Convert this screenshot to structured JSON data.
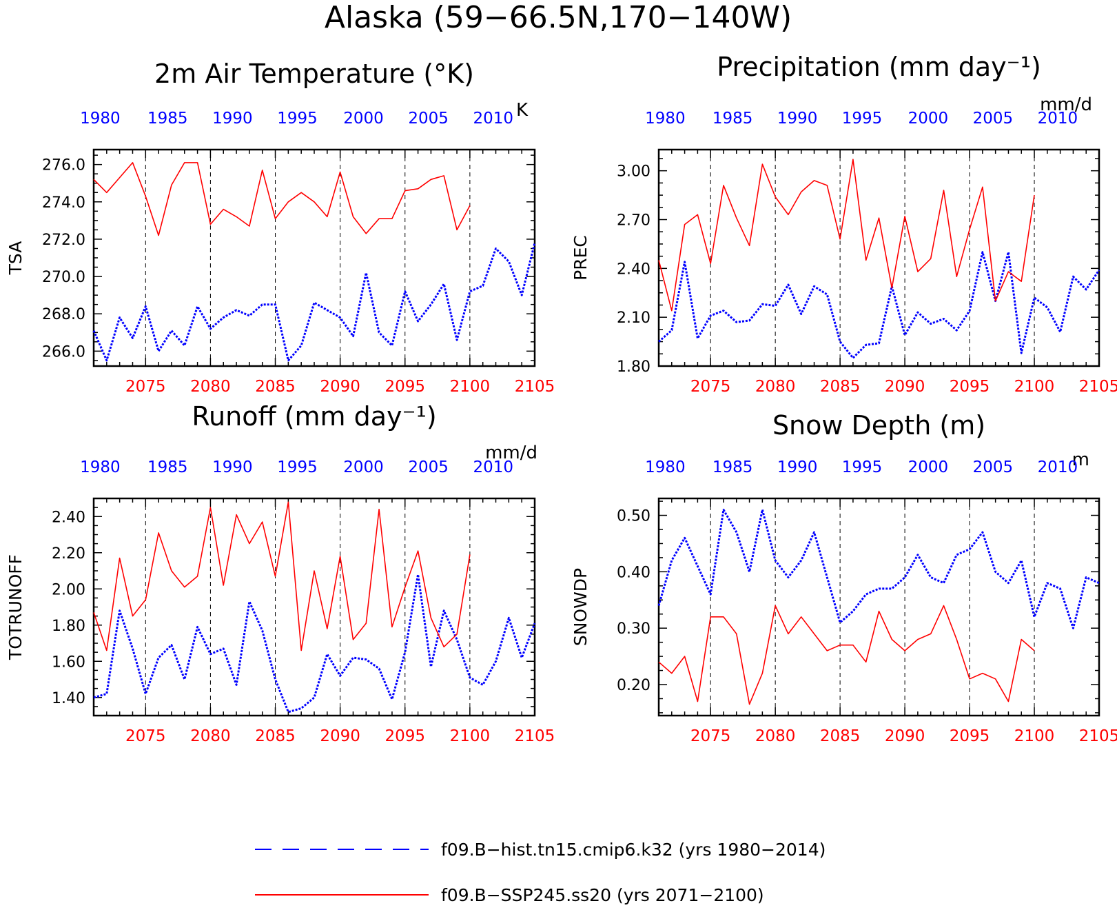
{
  "page_title": "Alaska (59−66.5N,170−140W)",
  "colors": {
    "hist": "#0000ff",
    "ssp": "#ff0000",
    "axis": "#000000",
    "vline": "#000000"
  },
  "legend": {
    "hist_label": "f09.B−hist.tn15.cmip6.k32 (yrs 1980−2014)",
    "ssp_label": "f09.B−SSP245.ss20 (yrs 2071−2100)"
  },
  "chart_data": [
    {
      "type": "line",
      "title": "2m Air Temperature (°K)",
      "ylabel": "TSA",
      "units": "K",
      "ylim": [
        265.2,
        276.8
      ],
      "yticks": [
        266.0,
        268.0,
        270.0,
        272.0,
        274.0,
        276.0
      ],
      "ytick_labels": [
        "266.0",
        "268.0",
        "270.0",
        "272.0",
        "274.0",
        "276.0"
      ],
      "x_bottom_ticks": [
        "2075",
        "2080",
        "2085",
        "2090",
        "2095",
        "2100",
        "2105"
      ],
      "x_top_ticks": [
        "1980",
        "1985",
        "1990",
        "1995",
        "2000",
        "2005",
        "2010"
      ],
      "grid": "dashed vertical lines every 5 years",
      "series": [
        {
          "name": "f09.B−hist.tn15.cmip6.k32",
          "years": "1980-2014",
          "values": [
            267.1,
            265.5,
            267.8,
            266.7,
            268.4,
            266.0,
            267.1,
            266.3,
            268.4,
            267.2,
            267.8,
            268.2,
            267.9,
            268.5,
            268.5,
            265.5,
            266.3,
            268.6,
            268.2,
            267.8,
            266.8,
            270.2,
            267.0,
            266.3,
            269.2,
            267.6,
            268.5,
            269.6,
            266.6,
            269.2,
            269.5,
            271.5,
            270.8,
            269.0,
            271.8
          ]
        },
        {
          "name": "f09.B−SSP245.ss20",
          "years": "2071-2100",
          "values": [
            275.2,
            274.5,
            275.3,
            276.1,
            274.3,
            272.2,
            274.9,
            276.1,
            276.1,
            272.8,
            273.6,
            273.2,
            272.7,
            275.7,
            273.1,
            274.0,
            274.5,
            274.0,
            273.2,
            275.6,
            273.2,
            272.3,
            273.1,
            273.1,
            274.6,
            274.7,
            275.2,
            275.4,
            272.5,
            273.8
          ]
        }
      ]
    },
    {
      "type": "line",
      "title": "Precipitation (mm day⁻¹)",
      "ylabel": "PREC",
      "units": "mm/d",
      "ylim": [
        1.8,
        3.13
      ],
      "yticks": [
        1.8,
        2.1,
        2.4,
        2.7,
        3.0
      ],
      "ytick_labels": [
        "1.80",
        "2.10",
        "2.40",
        "2.70",
        "3.00"
      ],
      "x_bottom_ticks": [
        "2075",
        "2080",
        "2085",
        "2090",
        "2095",
        "2100",
        "2105"
      ],
      "x_top_ticks": [
        "1980",
        "1985",
        "1990",
        "1995",
        "2000",
        "2005",
        "2010"
      ],
      "grid": "dashed vertical lines every 5 years",
      "series": [
        {
          "name": "f09.B−hist.tn15.cmip6.k32",
          "years": "1980-2014",
          "values": [
            1.95,
            2.02,
            2.44,
            1.97,
            2.11,
            2.14,
            2.07,
            2.08,
            2.18,
            2.17,
            2.3,
            2.12,
            2.29,
            2.24,
            1.95,
            1.85,
            1.93,
            1.94,
            2.29,
            1.99,
            2.13,
            2.06,
            2.09,
            2.02,
            2.14,
            2.5,
            2.2,
            2.5,
            1.88,
            2.22,
            2.16,
            2.01,
            2.35,
            2.27,
            2.39
          ]
        },
        {
          "name": "f09.B−SSP245.ss20",
          "years": "2071-2100",
          "values": [
            2.45,
            2.14,
            2.67,
            2.73,
            2.43,
            2.91,
            2.71,
            2.54,
            3.04,
            2.84,
            2.73,
            2.87,
            2.94,
            2.91,
            2.58,
            3.07,
            2.45,
            2.71,
            2.28,
            2.72,
            2.38,
            2.46,
            2.88,
            2.35,
            2.64,
            2.9,
            2.2,
            2.38,
            2.32,
            2.85
          ]
        }
      ]
    },
    {
      "type": "line",
      "title": "Runoff (mm day⁻¹)",
      "ylabel": "TOTRUNOFF",
      "units": "mm/d",
      "ylim": [
        1.3,
        2.5
      ],
      "yticks": [
        1.4,
        1.6,
        1.8,
        2.0,
        2.2,
        2.4
      ],
      "ytick_labels": [
        "1.40",
        "1.60",
        "1.80",
        "2.00",
        "2.20",
        "2.40"
      ],
      "x_bottom_ticks": [
        "2075",
        "2080",
        "2085",
        "2090",
        "2095",
        "2100",
        "2105"
      ],
      "x_top_ticks": [
        "1980",
        "1985",
        "1990",
        "1995",
        "2000",
        "2005",
        "2010"
      ],
      "grid": "dashed vertical lines every 5 years",
      "series": [
        {
          "name": "f09.B−hist.tn15.cmip6.k32",
          "years": "1980-2014",
          "values": [
            1.4,
            1.42,
            1.88,
            1.67,
            1.42,
            1.62,
            1.69,
            1.5,
            1.79,
            1.64,
            1.67,
            1.47,
            1.93,
            1.77,
            1.5,
            1.32,
            1.34,
            1.4,
            1.64,
            1.52,
            1.62,
            1.61,
            1.56,
            1.39,
            1.65,
            2.08,
            1.57,
            1.88,
            1.72,
            1.51,
            1.47,
            1.6,
            1.84,
            1.62,
            1.81
          ]
        },
        {
          "name": "f09.B−SSP245.ss20",
          "years": "2071-2100",
          "values": [
            1.87,
            1.66,
            2.17,
            1.85,
            1.94,
            2.31,
            2.1,
            2.01,
            2.07,
            2.45,
            2.02,
            2.41,
            2.25,
            2.37,
            2.07,
            2.48,
            1.66,
            2.1,
            1.78,
            2.18,
            1.72,
            1.81,
            2.44,
            1.79,
            2.01,
            2.21,
            1.84,
            1.68,
            1.75,
            2.19
          ]
        }
      ]
    },
    {
      "type": "line",
      "title": "Snow Depth (m)",
      "ylabel": "SNOWDP",
      "units": "m",
      "ylim": [
        0.145,
        0.53
      ],
      "yticks": [
        0.2,
        0.3,
        0.4,
        0.5
      ],
      "ytick_labels": [
        "0.20",
        "0.30",
        "0.40",
        "0.50"
      ],
      "x_bottom_ticks": [
        "2075",
        "2080",
        "2085",
        "2090",
        "2095",
        "2100",
        "2105"
      ],
      "x_top_ticks": [
        "1980",
        "1985",
        "1990",
        "1995",
        "2000",
        "2005",
        "2010"
      ],
      "grid": "dashed vertical lines every 5 years",
      "series": [
        {
          "name": "f09.B−hist.tn15.cmip6.k32",
          "years": "1980-2014",
          "values": [
            0.34,
            0.42,
            0.46,
            0.41,
            0.36,
            0.51,
            0.47,
            0.4,
            0.51,
            0.42,
            0.39,
            0.42,
            0.47,
            0.39,
            0.31,
            0.33,
            0.36,
            0.37,
            0.37,
            0.39,
            0.43,
            0.39,
            0.38,
            0.43,
            0.44,
            0.47,
            0.4,
            0.38,
            0.42,
            0.32,
            0.38,
            0.37,
            0.3,
            0.39,
            0.38
          ]
        },
        {
          "name": "f09.B−SSP245.ss20",
          "years": "2071-2100",
          "values": [
            0.24,
            0.22,
            0.25,
            0.17,
            0.32,
            0.32,
            0.29,
            0.165,
            0.22,
            0.34,
            0.29,
            0.32,
            0.29,
            0.26,
            0.27,
            0.27,
            0.24,
            0.33,
            0.28,
            0.26,
            0.28,
            0.29,
            0.34,
            0.28,
            0.21,
            0.22,
            0.21,
            0.17,
            0.28,
            0.26
          ]
        }
      ]
    }
  ]
}
